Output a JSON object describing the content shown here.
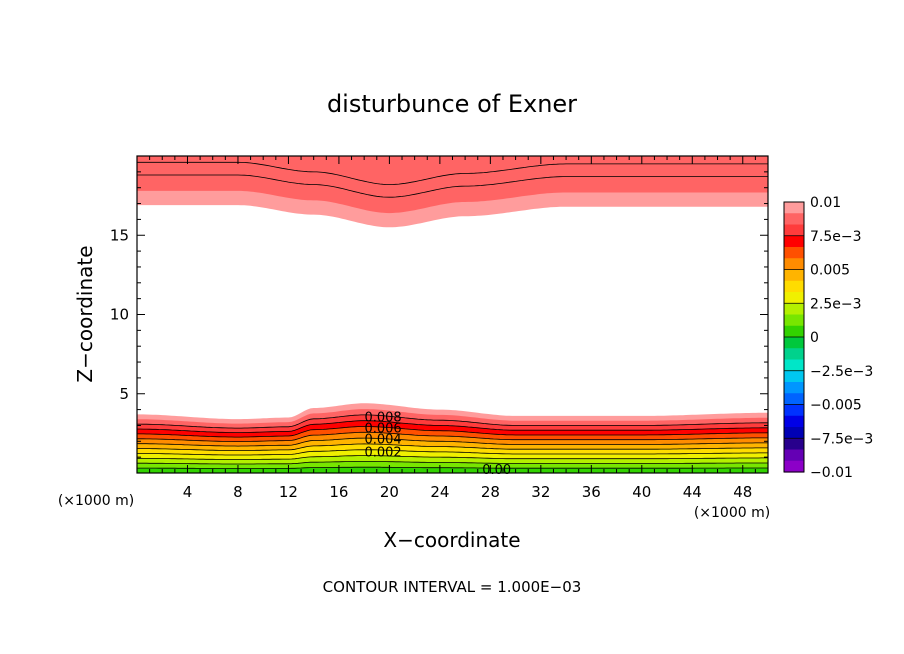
{
  "chart_data": {
    "type": "heatmap",
    "title": "disturbunce of Exner",
    "xlabel": "X−coordinate",
    "ylabel": "Z−coordinate",
    "x_unit": "(×1000 m)",
    "y_unit": "(×1000 m)",
    "xlim": [
      0,
      50
    ],
    "ylim": [
      0,
      20
    ],
    "x_ticks": [
      4,
      8,
      12,
      16,
      20,
      24,
      28,
      32,
      36,
      40,
      44,
      48
    ],
    "y_ticks": [
      5,
      10,
      15
    ],
    "footer": "CONTOUR INTERVAL = 1.000E−03",
    "contour_interval": 0.001,
    "contour_labels": [
      {
        "text": "0.008",
        "x": 19.5,
        "y": 3.5
      },
      {
        "text": "0.006",
        "x": 19.5,
        "y": 2.8
      },
      {
        "text": "0.004",
        "x": 19.5,
        "y": 2.1
      },
      {
        "text": "0.002",
        "x": 19.5,
        "y": 1.3
      },
      {
        "text": "0.00",
        "x": 28.5,
        "y": 0.2
      }
    ],
    "colorbar": {
      "tick_labels": [
        "0.01",
        "7.5e−3",
        "0.005",
        "2.5e−3",
        "0",
        "−2.5e−3",
        "−0.005",
        "−7.5e−3",
        "−0.01"
      ],
      "colors_top_to_bottom": [
        "#ff9c9c",
        "#ff6464",
        "#ff3c3c",
        "#ff0000",
        "#ff5000",
        "#ff8c00",
        "#ffb400",
        "#ffdc00",
        "#f0f000",
        "#b4f000",
        "#78e600",
        "#32d200",
        "#00c83c",
        "#00d28c",
        "#00e6c8",
        "#00c8f0",
        "#0096ff",
        "#0064ff",
        "#0032ff",
        "#0000e6",
        "#0000b4",
        "#28008c",
        "#6400b4",
        "#8c00c8"
      ]
    },
    "bottom_layer_boundary": [
      {
        "x": 0,
        "y": 3.7
      },
      {
        "x": 8,
        "y": 3.4
      },
      {
        "x": 12,
        "y": 3.5
      },
      {
        "x": 14,
        "y": 4.1
      },
      {
        "x": 18,
        "y": 4.4
      },
      {
        "x": 24,
        "y": 4.0
      },
      {
        "x": 30,
        "y": 3.6
      },
      {
        "x": 40,
        "y": 3.6
      },
      {
        "x": 50,
        "y": 3.8
      }
    ],
    "bottom_layer_colors_top_to_bottom": [
      "#ff9c9c",
      "#ff6464",
      "#ff3c3c",
      "#ff0000",
      "#ff5000",
      "#ff8c00",
      "#ffb400",
      "#ffdc00",
      "#f0f000",
      "#b4f000",
      "#78e600",
      "#32d200"
    ],
    "top_layer_boundary": [
      {
        "x": 0,
        "y": 16.9
      },
      {
        "x": 8,
        "y": 16.9
      },
      {
        "x": 14,
        "y": 16.3
      },
      {
        "x": 20,
        "y": 15.5
      },
      {
        "x": 26,
        "y": 16.2
      },
      {
        "x": 34,
        "y": 16.8
      },
      {
        "x": 50,
        "y": 16.8
      }
    ],
    "top_layer_colors_bottom_to_top": [
      "#ff9c9c",
      "#ff6464"
    ],
    "axis_color": "#000000",
    "background": "#ffffff"
  }
}
